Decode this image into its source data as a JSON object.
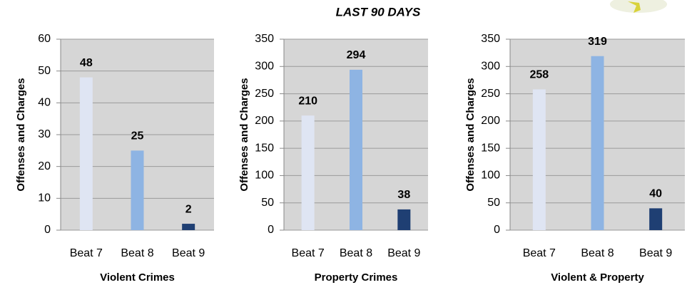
{
  "title": "LAST 90 DAYS",
  "chart_data": [
    {
      "type": "bar",
      "x_label": "Violent Crimes",
      "y_label": "Offenses and Charges",
      "categories": [
        "Beat 7",
        "Beat 8",
        "Beat 9"
      ],
      "values": [
        48,
        25,
        2
      ],
      "colors": [
        "#dfe5f3",
        "#8eb4e3",
        "#1f3f73"
      ],
      "ylim": [
        0,
        60
      ],
      "yticks": [
        0,
        10,
        20,
        30,
        40,
        50,
        60
      ],
      "grid": true
    },
    {
      "type": "bar",
      "x_label": "Property Crimes",
      "y_label": "Offenses and Charges",
      "categories": [
        "Beat 7",
        "Beat 8",
        "Beat 9"
      ],
      "values": [
        210,
        294,
        38
      ],
      "colors": [
        "#dfe5f3",
        "#8eb4e3",
        "#1f3f73"
      ],
      "ylim": [
        0,
        350
      ],
      "yticks": [
        0,
        50,
        100,
        150,
        200,
        250,
        300,
        350
      ],
      "grid": true
    },
    {
      "type": "bar",
      "x_label": "Violent & Property",
      "y_label": "Offenses and Charges",
      "categories": [
        "Beat 7",
        "Beat 8",
        "Beat 9"
      ],
      "values": [
        258,
        319,
        40
      ],
      "colors": [
        "#dfe5f3",
        "#8eb4e3",
        "#1f3f73"
      ],
      "ylim": [
        0,
        350
      ],
      "yticks": [
        0,
        50,
        100,
        150,
        200,
        250,
        300,
        350
      ],
      "grid": true
    }
  ]
}
